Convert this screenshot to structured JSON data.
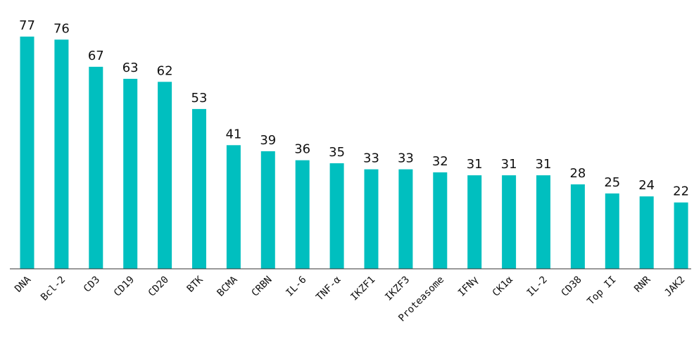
{
  "chart_data": {
    "type": "bar",
    "categories": [
      "DNA",
      "Bcl-2",
      "CD3",
      "CD19",
      "CD20",
      "BTK",
      "BCMA",
      "CRBN",
      "IL-6",
      "TNF-α",
      "IKZF1",
      "IKZF3",
      "Proteasome",
      "IFNγ",
      "CK1α",
      "IL-2",
      "CD38",
      "Top II",
      "RNR",
      "JAK2"
    ],
    "values": [
      77,
      76,
      67,
      63,
      62,
      53,
      41,
      39,
      36,
      35,
      33,
      33,
      32,
      31,
      31,
      31,
      28,
      25,
      24,
      22
    ],
    "title": "",
    "xlabel": "",
    "ylabel": "",
    "ylim": [
      0,
      77
    ],
    "grid": false,
    "legend": "none",
    "bar_color": "#00BFBF",
    "show_value_labels": true
  }
}
